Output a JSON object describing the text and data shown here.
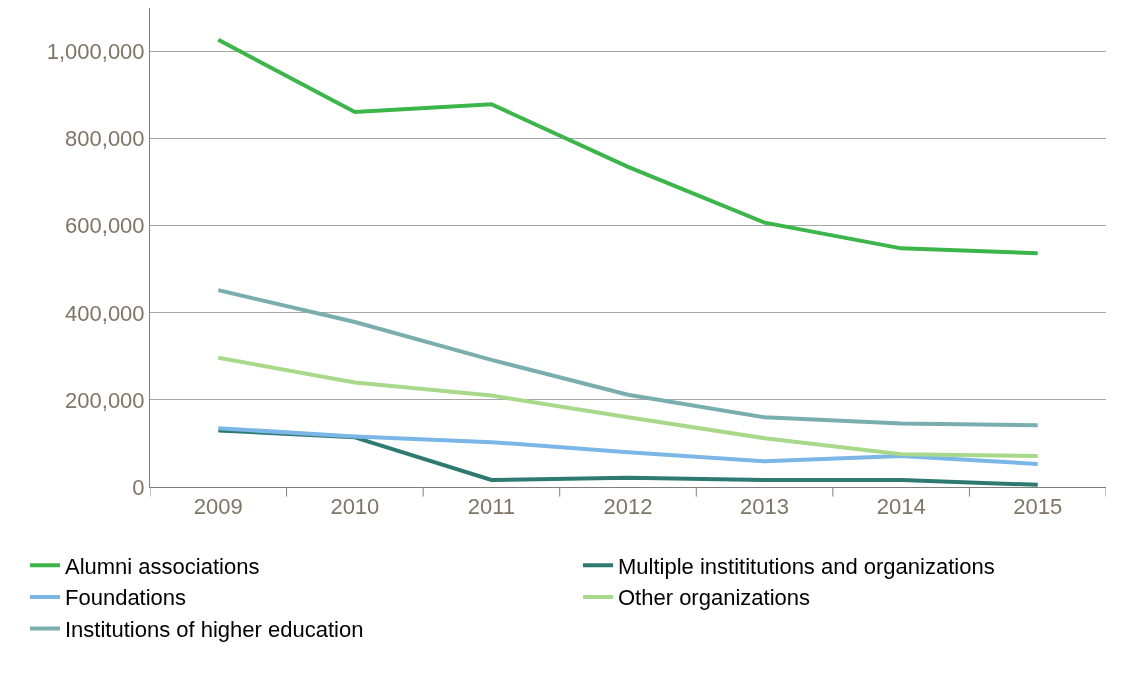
{
  "chart_data": {
    "type": "line",
    "categories": [
      "2009",
      "2010",
      "2011",
      "2012",
      "2013",
      "2014",
      "2015"
    ],
    "series": [
      {
        "name": "Alumni associations",
        "color": "#3cb54a",
        "values": [
          1027000,
          861000,
          879000,
          735000,
          607000,
          548000,
          537000
        ]
      },
      {
        "name": "Multiple instititutions and organizations",
        "color": "#2e7a73",
        "values": [
          130000,
          114000,
          16000,
          21000,
          16000,
          16000,
          5000
        ]
      },
      {
        "name": "Foundations",
        "color": "#7ab6e6",
        "values": [
          135000,
          116000,
          103000,
          80000,
          59000,
          71000,
          53000
        ]
      },
      {
        "name": "Other organizations",
        "color": "#a8d98a",
        "values": [
          297000,
          240000,
          210000,
          160000,
          112000,
          75000,
          71000
        ]
      },
      {
        "name": "Institutions of higher education",
        "color": "#7aaeae",
        "values": [
          452000,
          379000,
          292000,
          212000,
          160000,
          146000,
          142000
        ]
      }
    ],
    "ylim": [
      0,
      1100000
    ],
    "yticks": [
      {
        "value": 0,
        "label": "0"
      },
      {
        "value": 200000,
        "label": "200,000"
      },
      {
        "value": 400000,
        "label": "400,000"
      },
      {
        "value": 600000,
        "label": "600,000"
      },
      {
        "value": 800000,
        "label": "800,000"
      },
      {
        "value": 1000000,
        "label": "1,000,000"
      }
    ],
    "grid": "y",
    "legend": "bottom",
    "marker": "none",
    "line_style": "solid"
  }
}
